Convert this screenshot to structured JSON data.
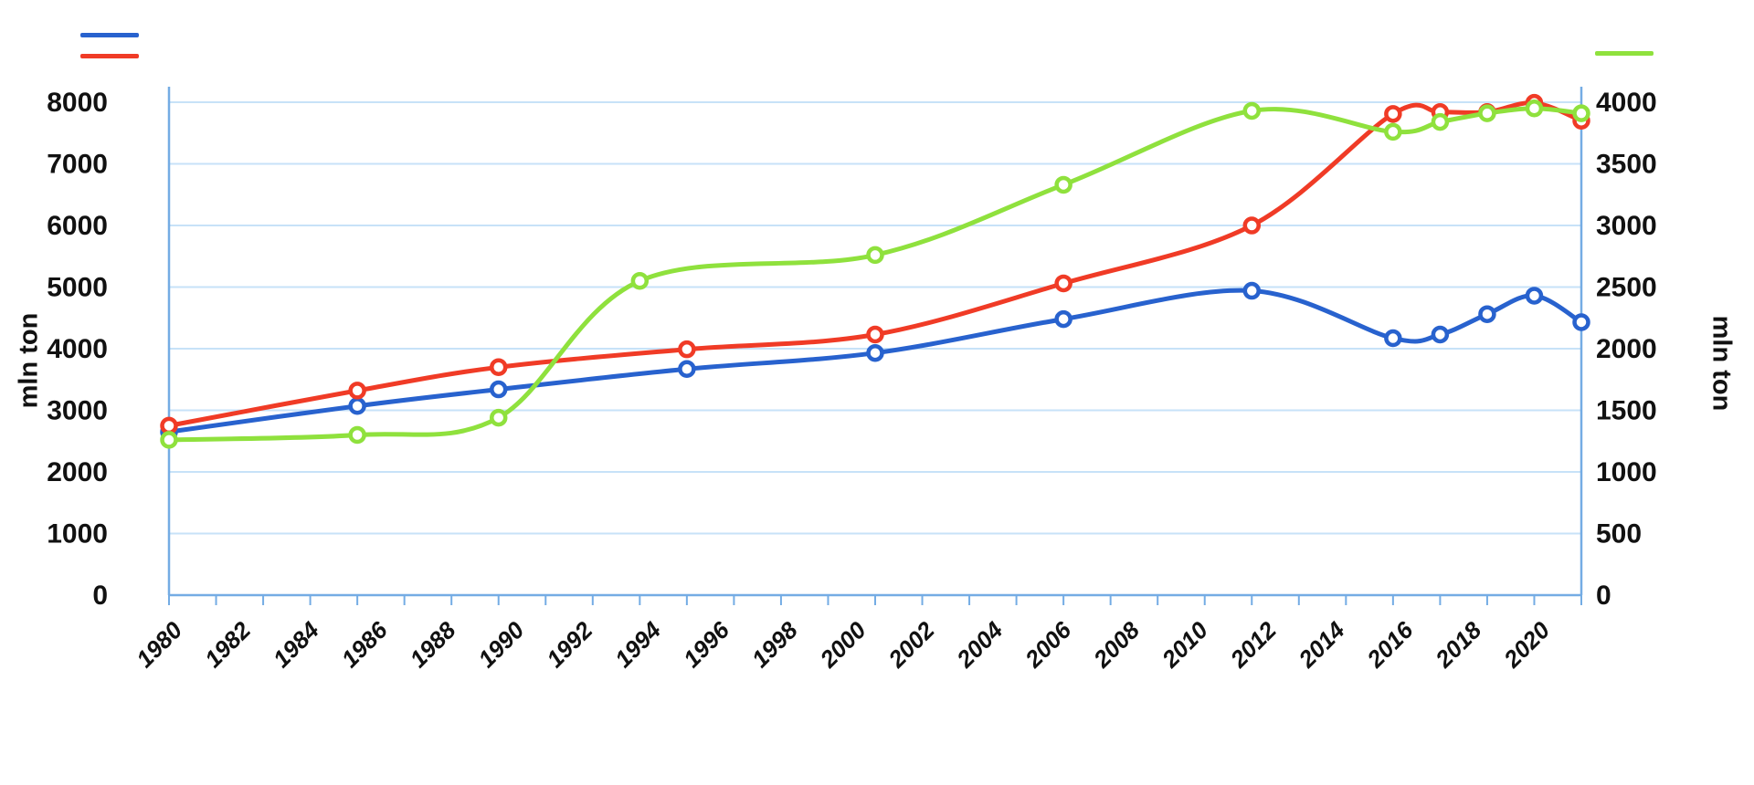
{
  "style": {
    "background": "#FFFFFF",
    "grid_color": "#C7E2F8",
    "axis_color": "#74ACE4",
    "text_color": "#111111"
  },
  "axes": {
    "left": {
      "title": "mln ton"
    },
    "right": {
      "title": "mln ton"
    }
  },
  "legend": {
    "left_swatches": [
      {
        "name": "series-1",
        "color": "#2862CE"
      },
      {
        "name": "series-2",
        "color": "#F03B26"
      }
    ],
    "right_swatches": [
      {
        "name": "series-3",
        "color": "#8FE13D"
      }
    ]
  },
  "chart_data": {
    "type": "line",
    "dual_axis": true,
    "grid": true,
    "x_axis": {
      "range_years": [
        1980,
        2021
      ],
      "tick_count": 31,
      "tick_labels": [
        "1980",
        "1982",
        "1984",
        "1986",
        "1988",
        "1990",
        "1992",
        "1994",
        "1996",
        "1998",
        "2000",
        "2002",
        "2004",
        "2006",
        "2008",
        "2010",
        "2012",
        "2014",
        "2016",
        "2018",
        "2020"
      ],
      "label_rotation_deg": -45
    },
    "left_axis": {
      "title": "mln ton",
      "min": 0,
      "max": 8000,
      "step": 1000,
      "tick_labels": [
        "8000",
        "7000",
        "6000",
        "5000",
        "4000",
        "3000",
        "2000",
        "1000",
        "0"
      ]
    },
    "right_axis": {
      "title": "mln ton",
      "min": 0,
      "max": 4000,
      "step": 500,
      "tick_labels": [
        "4000",
        "3500",
        "3000",
        "2500",
        "2000",
        "1500",
        "1000",
        "500",
        "0"
      ]
    },
    "series": [
      {
        "id": "series-1",
        "color": "#2862CE",
        "axis": "left",
        "marker": "open-circle",
        "years": [
          1980,
          1985,
          1990,
          1995,
          2000,
          2005,
          2010,
          2017,
          2018,
          2019,
          2020,
          2021
        ],
        "x_ticks": [
          0,
          4,
          7,
          11,
          15,
          19,
          23,
          26,
          27,
          28,
          29,
          30
        ],
        "values": [
          2650,
          3070,
          3340,
          3670,
          3930,
          4480,
          4940,
          4170,
          4230,
          4560,
          4860,
          4430
        ]
      },
      {
        "id": "series-2",
        "color": "#F03B26",
        "axis": "left",
        "marker": "open-circle",
        "years": [
          1980,
          1985,
          1990,
          1995,
          2000,
          2005,
          2010,
          2017,
          2018,
          2019,
          2020,
          2021
        ],
        "x_ticks": [
          0,
          4,
          7,
          11,
          15,
          19,
          23,
          26,
          27,
          28,
          29,
          30
        ],
        "values": [
          2750,
          3320,
          3700,
          3990,
          4230,
          5060,
          6000,
          7810,
          7840,
          7840,
          7990,
          7700
        ]
      },
      {
        "id": "series-3",
        "color": "#8FE13D",
        "axis": "right",
        "marker": "open-circle",
        "years": [
          1980,
          1985,
          1990,
          1995,
          2000,
          2005,
          2010,
          2017,
          2018,
          2019,
          2020,
          2021
        ],
        "x_ticks": [
          0,
          4,
          7,
          10,
          15,
          19,
          23,
          26,
          27,
          28,
          29,
          30
        ],
        "values": [
          1260,
          1300,
          1440,
          2550,
          2760,
          3330,
          3930,
          3760,
          3840,
          3910,
          3950,
          3910
        ]
      }
    ]
  }
}
